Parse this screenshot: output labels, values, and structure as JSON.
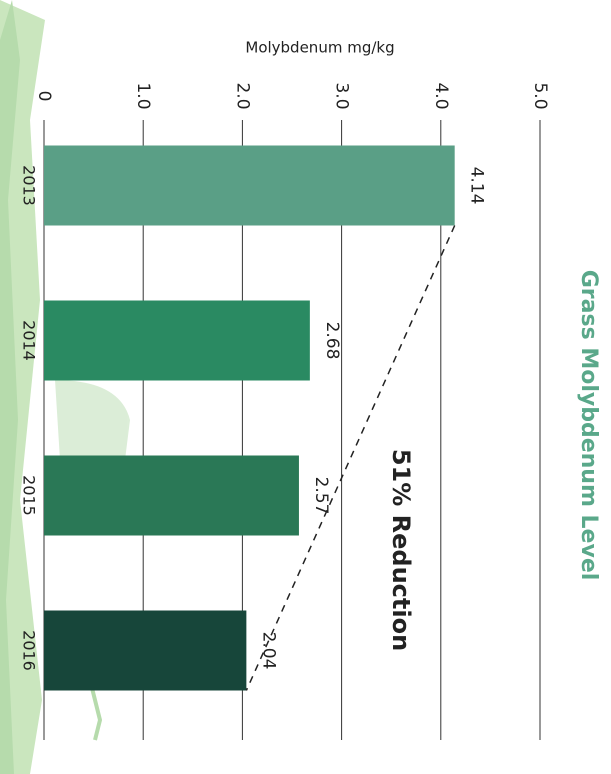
{
  "chart_data": {
    "type": "bar",
    "orientation": "horizontal",
    "title": "Grass Molybdenum Level",
    "axis_label": "Molybdenum mg/kg",
    "annotation": "51% Reduction",
    "categories": [
      "2013",
      "2014",
      "2015",
      "2016"
    ],
    "values": [
      4.14,
      2.68,
      2.57,
      2.04
    ],
    "colors": [
      "#5a9f86",
      "#2a8a62",
      "#2a7856",
      "#17463a"
    ],
    "xlim": [
      0,
      5
    ],
    "xticks": [
      0,
      {
        "value": 1,
        "label": "1.0"
      },
      {
        "value": 2,
        "label": "2.0"
      },
      {
        "value": 3,
        "label": "3.0"
      },
      {
        "value": 4,
        "label": "4.0"
      },
      {
        "value": 5,
        "label": "5.0"
      }
    ],
    "grid": true,
    "title_color": "#5aa88a"
  }
}
